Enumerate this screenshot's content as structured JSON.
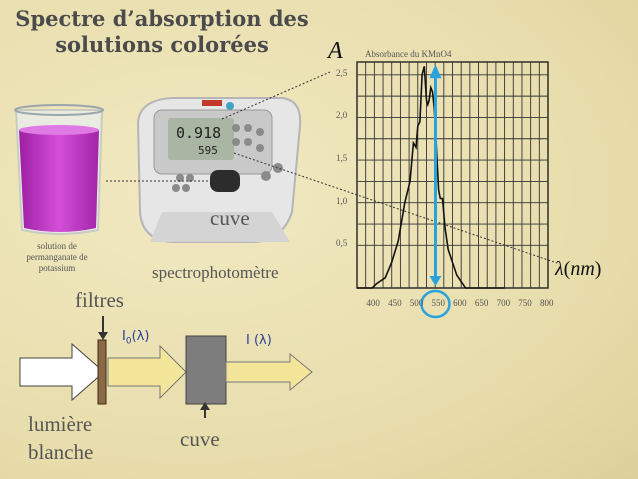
{
  "title": {
    "line1": "Spectre d’absorption des",
    "line2": "solutions colorées"
  },
  "labels": {
    "solution": "solution de permanganate de potassium",
    "cuve_top": "cuve",
    "spectro": "spectrophotomètre",
    "filtres": "filtres",
    "lumiere_line1": "lumière",
    "lumiere_line2": "blanche",
    "cuve_bottom": "cuve",
    "i0": "I0(λ)",
    "i": "I (λ)"
  },
  "device_display": {
    "value": "0.918",
    "wavelength": "595"
  },
  "chart_data": {
    "type": "line",
    "title": "Absorbance du KMnO4",
    "ylabel": "A",
    "xlabel": "λ(nm)",
    "x_ticks": [
      "400",
      "450",
      "500",
      "550",
      "600",
      "650",
      "700",
      "750",
      "800"
    ],
    "y_ticks": [
      "0,5",
      "1,0",
      "1,5",
      "2,0",
      "2,5"
    ],
    "xlim": [
      360,
      800
    ],
    "ylim": [
      0,
      2.65
    ],
    "grid": true,
    "series": [
      {
        "color": "#111111",
        "x": [
          360,
          372,
          384,
          395,
          405,
          425,
          440,
          455,
          470,
          482,
          490,
          496,
          500,
          505,
          510,
          515,
          520,
          523,
          526,
          530,
          534,
          538,
          542,
          548,
          552,
          557,
          563,
          570,
          590,
          610,
          640,
          680,
          700
        ],
        "y": [
          0.0,
          0.0,
          0.0,
          0.0,
          0.05,
          0.12,
          0.3,
          0.55,
          1.0,
          1.25,
          1.7,
          1.65,
          1.9,
          1.95,
          2.5,
          2.6,
          2.2,
          2.15,
          2.2,
          2.35,
          2.3,
          2.1,
          1.75,
          1.15,
          1.05,
          1.05,
          0.7,
          0.45,
          0.15,
          0.0,
          0.0,
          0.0,
          0.0
        ]
      }
    ],
    "annotations": {
      "highlight_wavelength": 550,
      "highlight_color": "#2aa3dc"
    }
  },
  "colors": {
    "accent": "#2aa3dc",
    "solution": "#c338c9",
    "arrow_fill": "#f3e69a",
    "text": "#555555"
  }
}
